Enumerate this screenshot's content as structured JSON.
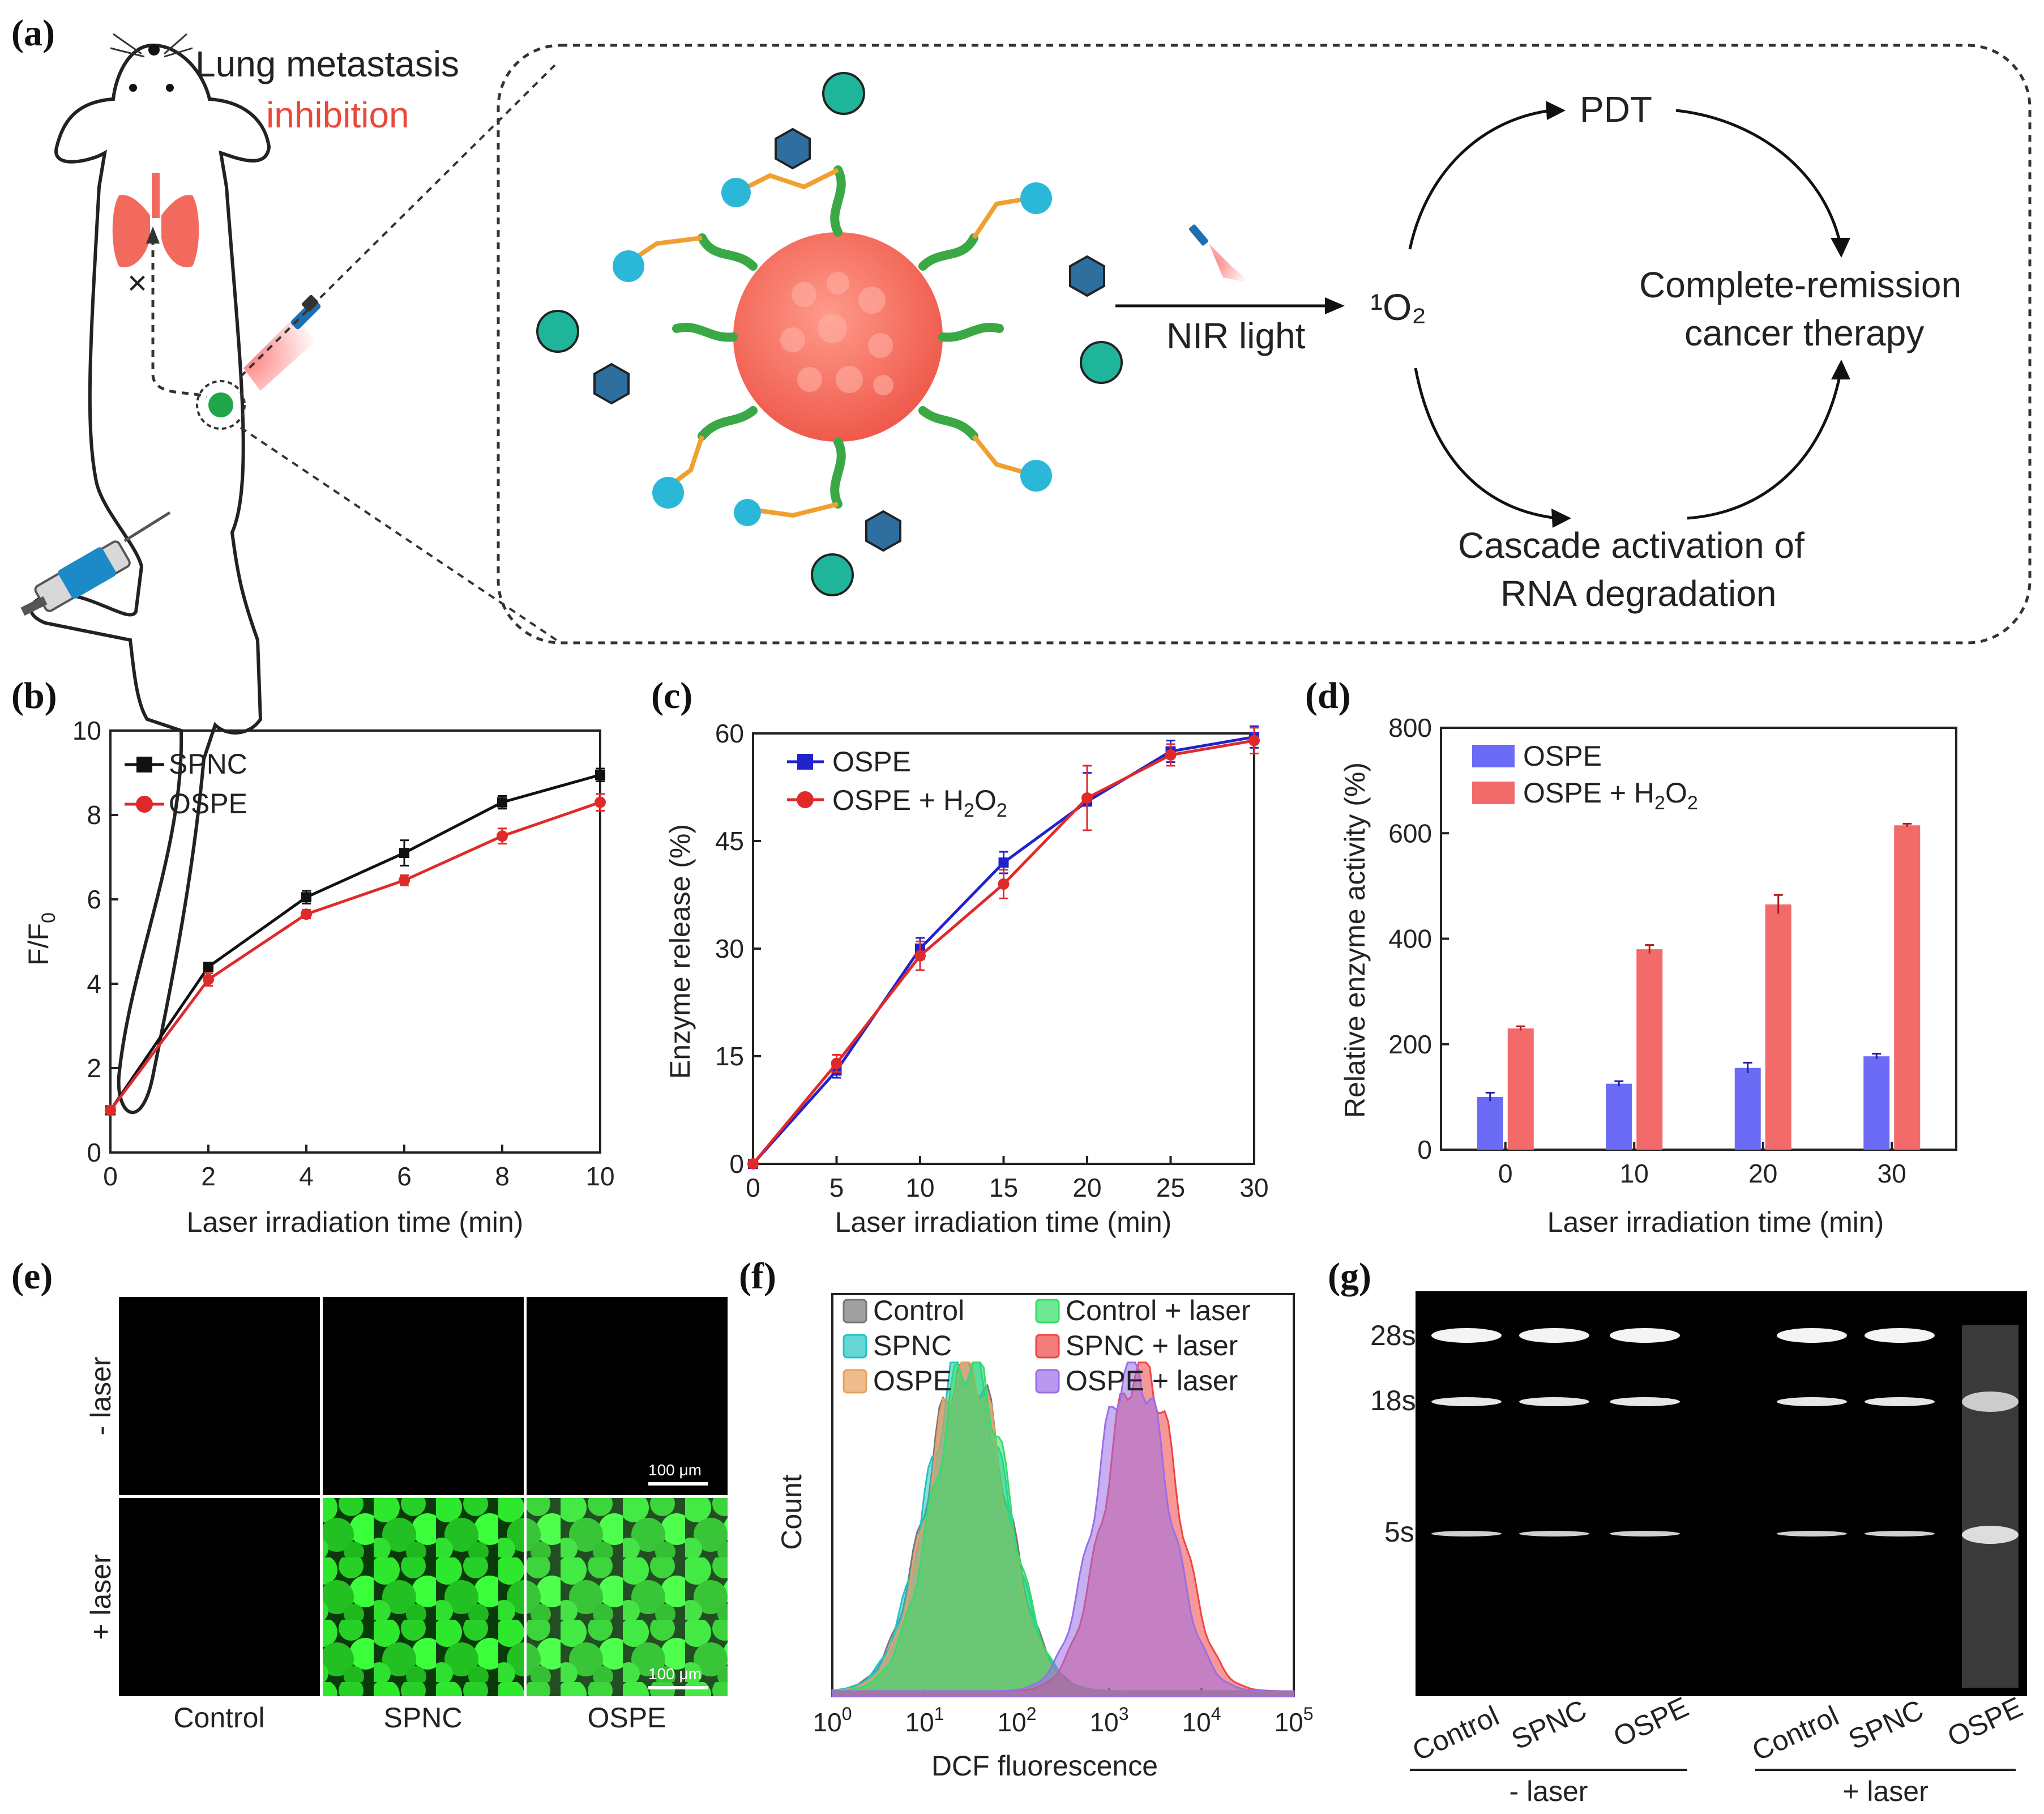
{
  "panel_labels": {
    "a": "(a)",
    "b": "(b)",
    "c": "(c)",
    "d": "(d)",
    "e": "(e)",
    "f": "(f)",
    "g": "(g)"
  },
  "schematic": {
    "mouse_line1": "Lung metastasis",
    "mouse_line2": "inhibition",
    "light": "NIR light",
    "singlet_oxygen": "¹O₂",
    "pdt": "PDT",
    "outcome_line1": "Complete-remission",
    "outcome_line2": "cancer therapy",
    "cascade_line1": "Cascade activation of",
    "cascade_line2": "RNA degradation",
    "colors": {
      "core": "#f26a5e",
      "helix": "#3aa845",
      "linker": "#f0a030",
      "ring": "#2f6f9f",
      "boron": "#1fb59a",
      "lung": "#f26a5e",
      "tumor": "#1ea64a"
    }
  },
  "chart_data": [
    {
      "type": "line",
      "title": "",
      "xlabel": "Laser irradiation time (min)",
      "ylabel_main": "F/F",
      "ylabel_sub": "0",
      "x": [
        0,
        2,
        4,
        6,
        8,
        10
      ],
      "xlim": [
        0,
        10
      ],
      "ylim": [
        0,
        10
      ],
      "xticks": [
        "0",
        "2",
        "4",
        "6",
        "8",
        "10"
      ],
      "yticks": [
        "0",
        "2",
        "4",
        "6",
        "8",
        "10"
      ],
      "legend": "top-left",
      "series": [
        {
          "name": "SPNC",
          "values": [
            1.0,
            4.4,
            6.05,
            7.1,
            8.3,
            8.95
          ],
          "errors": [
            0.05,
            0.1,
            0.15,
            0.3,
            0.15,
            0.15
          ],
          "color": "#111111",
          "marker": "square"
        },
        {
          "name": "OSPE",
          "values": [
            1.0,
            4.1,
            5.65,
            6.45,
            7.5,
            8.3
          ],
          "errors": [
            0.05,
            0.15,
            0.1,
            0.12,
            0.18,
            0.2
          ],
          "color": "#e02a2a",
          "marker": "circle"
        }
      ]
    },
    {
      "type": "line",
      "title": "",
      "xlabel": "Laser irradiation time (min)",
      "ylabel": "Enzyme release (%)",
      "x": [
        0,
        5,
        10,
        15,
        20,
        25,
        30
      ],
      "xlim": [
        0,
        30
      ],
      "ylim": [
        0,
        60
      ],
      "xticks": [
        "0",
        "5",
        "10",
        "15",
        "20",
        "25",
        "30"
      ],
      "yticks": [
        "0",
        "15",
        "30",
        "45",
        "60"
      ],
      "legend": "top-left",
      "series": [
        {
          "name": "OSPE",
          "values": [
            0,
            13,
            30,
            42,
            50.5,
            57.5,
            59.5
          ],
          "errors": [
            0.5,
            1.0,
            1.5,
            1.5,
            4.0,
            1.5,
            1.5
          ],
          "color": "#2222cc",
          "marker": "square"
        },
        {
          "name_main": "OSPE + H",
          "name_sub1": "2",
          "name_mid": "O",
          "name_sub2": "2",
          "values": [
            0,
            14,
            29,
            39,
            51,
            57,
            59
          ],
          "errors": [
            0.5,
            1.2,
            2.0,
            2.0,
            4.5,
            1.5,
            1.8
          ],
          "color": "#e02a2a",
          "marker": "circle"
        }
      ]
    },
    {
      "type": "bar",
      "title": "",
      "xlabel": "Laser irradiation time (min)",
      "ylabel": "Relative enzyme activity (%)",
      "categories": [
        "0",
        "10",
        "20",
        "30"
      ],
      "ylim": [
        0,
        800
      ],
      "yticks": [
        "0",
        "200",
        "400",
        "600",
        "800"
      ],
      "legend": "top-left",
      "series": [
        {
          "name": "OSPE",
          "values": [
            100,
            125,
            155,
            177
          ],
          "errors": [
            8,
            5,
            10,
            5
          ],
          "color": "#6b6bf5"
        },
        {
          "name_main": "OSPE + H",
          "name_sub1": "2",
          "name_mid": "O",
          "name_sub2": "2",
          "values": [
            230,
            380,
            465,
            615
          ],
          "errors": [
            4,
            8,
            18,
            3
          ],
          "color": "#f26a6a"
        }
      ]
    },
    {
      "type": "histogram",
      "title": "",
      "xlabel": "DCF fluorescence",
      "ylabel": "Count",
      "xscale": "log",
      "xlim_exp": [
        0,
        5
      ],
      "xtick_base": "10",
      "xtick_exps": [
        "0",
        "1",
        "2",
        "3",
        "4",
        "5"
      ],
      "legend": "top",
      "series": [
        {
          "name": "Control",
          "color": "#777777",
          "peak_log10": 1.45
        },
        {
          "name": "SPNC",
          "color": "#22c4c4",
          "peak_log10": 1.45
        },
        {
          "name": "OSPE",
          "color": "#e8a060",
          "peak_log10": 1.45
        },
        {
          "name": "Control + laser",
          "color": "#33dd66",
          "peak_log10": 1.5
        },
        {
          "name": "SPNC + laser",
          "color": "#ee4444",
          "peak_log10": 3.35
        },
        {
          "name": "OSPE + laser",
          "color": "#9a6ee8",
          "peak_log10": 3.25
        }
      ]
    }
  ],
  "panel_e": {
    "row_labels": [
      "- laser",
      "+ laser"
    ],
    "col_labels": [
      "Control",
      "SPNC",
      "OSPE"
    ],
    "scale_bar": "100 μm"
  },
  "panel_g": {
    "band_labels": [
      "28s",
      "18s",
      "5s"
    ],
    "lane_labels": [
      "Control",
      "SPNC",
      "OSPE",
      "Control",
      "SPNC",
      "OSPE"
    ],
    "group_labels": [
      "- laser",
      "+ laser"
    ]
  }
}
